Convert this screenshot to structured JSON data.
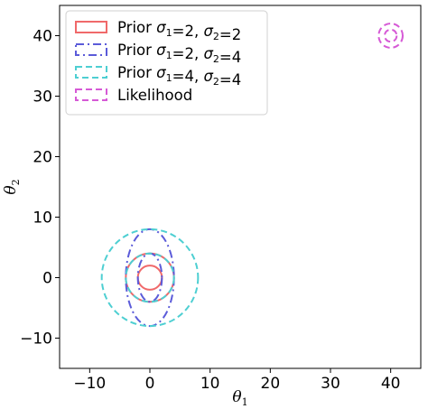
{
  "chart_data": {
    "type": "contour",
    "xlabel": "θ",
    "xlabel_sub": "1",
    "ylabel": "θ",
    "ylabel_sub": "2",
    "xlim": [
      -15,
      45
    ],
    "ylim": [
      -15,
      45
    ],
    "xticks": [
      -10,
      0,
      10,
      20,
      30,
      40
    ],
    "xtick_labels": [
      "−10",
      "0",
      "10",
      "20",
      "30",
      "40"
    ],
    "yticks": [
      -10,
      0,
      10,
      20,
      30,
      40
    ],
    "ytick_labels": [
      "−10",
      "0",
      "10",
      "20",
      "30",
      "40"
    ],
    "grid": false,
    "legend_position": "top-left",
    "series": [
      {
        "name": "Prior σ1 = 2, σ2 = 2",
        "legend_prefix": "Prior ",
        "legend_math": "σ1=2,σ2=2",
        "color": "#f0696a",
        "linestyle": "solid",
        "center": [
          0,
          0
        ],
        "contours": [
          [
            2,
            2
          ],
          [
            4,
            4
          ]
        ]
      },
      {
        "name": "Prior σ1 = 2, σ2 = 4",
        "legend_prefix": "Prior ",
        "legend_math": "σ1=2,σ2=4",
        "color": "#5b5bd9",
        "linestyle": "dashdot",
        "center": [
          0,
          0
        ],
        "contours": [
          [
            2,
            4
          ],
          [
            4,
            8
          ]
        ]
      },
      {
        "name": "Prior σ1 = 4, σ2 = 4",
        "legend_prefix": "Prior ",
        "legend_math": "σ1=4,σ2=4",
        "color": "#4ecfd2",
        "linestyle": "dashed",
        "center": [
          0,
          0
        ],
        "contours": [
          [
            4,
            4
          ],
          [
            8,
            8
          ]
        ]
      },
      {
        "name": "Likelihood",
        "legend_prefix": "Likelihood",
        "legend_math": "",
        "color": "#d65ad6",
        "linestyle": "dashed",
        "center": [
          40,
          40
        ],
        "contours": [
          [
            1,
            1
          ],
          [
            2,
            2
          ]
        ]
      }
    ]
  }
}
